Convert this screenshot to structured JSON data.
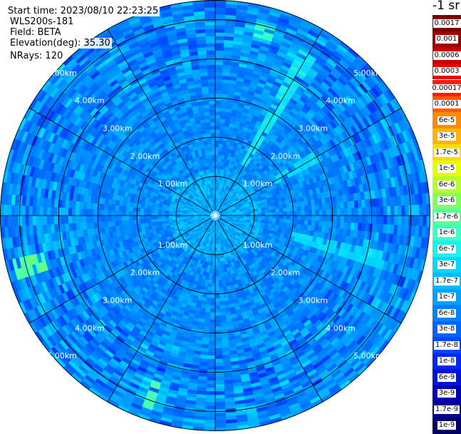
{
  "info": {
    "start_time": "Start time: 2023/08/10 22:23:25",
    "instrument": "WLS200s-181",
    "field": "Field: BETA",
    "elevation": "Elevation(deg): 35.30",
    "nrays": "NRays: 120"
  },
  "colorbar": {
    "unit_label": "-1 sr",
    "top_group": [
      {
        "label": "0.0017",
        "color": "#7f0000"
      },
      {
        "label": "0.001",
        "color": "#a00000"
      },
      {
        "label": "0.0006",
        "color": "#c80000"
      },
      {
        "label": "0.0003",
        "color": "#e60000"
      }
    ],
    "main_group": [
      {
        "label": "0.00017",
        "color": "#ff1e00"
      },
      {
        "label": "0.0001",
        "color": "#ff5a00"
      },
      {
        "label": "6e-5",
        "color": "#ff8c00"
      },
      {
        "label": "3e-5",
        "color": "#ffb400"
      },
      {
        "label": "1.7e-5",
        "color": "#ffdc00"
      },
      {
        "label": "1e-5",
        "color": "#e6ff00"
      },
      {
        "label": "6e-6",
        "color": "#b4ff2a"
      },
      {
        "label": "3e-6",
        "color": "#82ff5a"
      },
      {
        "label": "1.7e-6",
        "color": "#5aff96"
      },
      {
        "label": "1e-6",
        "color": "#3cffc8"
      },
      {
        "label": "6e-7",
        "color": "#1ef0f0"
      },
      {
        "label": "3e-7",
        "color": "#00d8ff"
      },
      {
        "label": "1.7e-7",
        "color": "#00bcff"
      },
      {
        "label": "1e-7",
        "color": "#00a0ff"
      },
      {
        "label": "6e-8",
        "color": "#0082ff"
      },
      {
        "label": "3e-8",
        "color": "#0064ff"
      },
      {
        "label": "1.7e-8",
        "color": "#0046ff"
      },
      {
        "label": "1e-8",
        "color": "#0028f0"
      },
      {
        "label": "6e-9",
        "color": "#0014d8"
      },
      {
        "label": "3e-9",
        "color": "#0000b4"
      },
      {
        "label": "1.7e-9",
        "color": "#000090"
      },
      {
        "label": "1e-9",
        "color": "#000064"
      }
    ]
  },
  "chart_data": {
    "type": "heatmap",
    "projection": "polar",
    "field": "BETA",
    "elevation_deg": 35.3,
    "n_rays": 120,
    "range_rings_km": [
      1.0,
      2.0,
      3.0,
      4.0,
      5.0
    ],
    "max_range_km": 5.5,
    "ring_labels": [
      "1.00km",
      "2.00km",
      "3.00km",
      "4.00km",
      "5.00km"
    ],
    "azimuth_lines_deg": [
      0,
      30,
      60,
      90,
      120,
      150,
      180,
      210,
      240,
      270,
      300,
      330
    ],
    "colorscale": "log",
    "value_range": [
      1e-09,
      0.0017
    ],
    "typical_value_range": [
      1e-08,
      3e-07
    ],
    "features": [
      {
        "azimuth_deg": 30,
        "range_km": [
          1.5,
          4.8
        ],
        "value": 1e-06
      },
      {
        "azimuth_deg": 60,
        "range_km": [
          1.7,
          3.0
        ],
        "value": 6e-07
      },
      {
        "azimuth_deg": 105,
        "range_km": [
          2.0,
          4.5
        ],
        "value": 6e-07
      },
      {
        "azimuth_deg": 255,
        "range_km": [
          4.5,
          5.3
        ],
        "value": 6e-06
      },
      {
        "azimuth_deg": 200,
        "range_km": [
          4.5,
          5.2
        ],
        "value": 1.7e-06
      },
      {
        "azimuth_deg": 15,
        "range_km": [
          4.7,
          5.0
        ],
        "value": 3e-06
      }
    ]
  }
}
